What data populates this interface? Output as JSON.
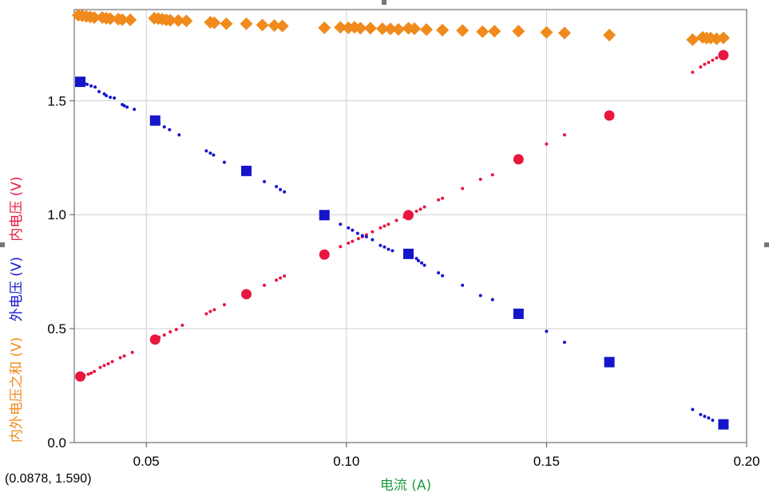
{
  "chart_data": {
    "type": "scatter",
    "title": "",
    "xlabel": "电流 (A)",
    "x_ticks": [
      "0.05",
      "0.10",
      "0.15",
      "0.20"
    ],
    "y_ticks": [
      "0.0",
      "0.5",
      "1.0",
      "1.5"
    ],
    "xlim": [
      0.032,
      0.2
    ],
    "ylim": [
      0,
      1.9
    ],
    "grid": true,
    "y_axis_labels": [
      {
        "text": "内电压 (V)",
        "color": "#e8173f"
      },
      {
        "text": "外电压 (V)",
        "color": "#1515cc"
      },
      {
        "text": "内外电压之和 (V)",
        "color": "#f08a1c"
      }
    ],
    "series": [
      {
        "name": "内电压",
        "color": "#e8173f",
        "marker": "circle",
        "highlight_points": [
          [
            0.0335,
            0.29
          ],
          [
            0.0522,
            0.452
          ],
          [
            0.075,
            0.651
          ],
          [
            0.0945,
            0.825
          ],
          [
            0.1155,
            0.998
          ],
          [
            0.143,
            1.243
          ],
          [
            0.1657,
            1.435
          ],
          [
            0.1942,
            1.7
          ]
        ],
        "sample_points": [
          [
            0.0345,
            0.295
          ],
          [
            0.0355,
            0.3
          ],
          [
            0.0362,
            0.305
          ],
          [
            0.037,
            0.312
          ],
          [
            0.0385,
            0.33
          ],
          [
            0.0395,
            0.338
          ],
          [
            0.0405,
            0.346
          ],
          [
            0.0415,
            0.355
          ],
          [
            0.0435,
            0.372
          ],
          [
            0.0445,
            0.38
          ],
          [
            0.0465,
            0.396
          ],
          [
            0.0532,
            0.462
          ],
          [
            0.0545,
            0.472
          ],
          [
            0.056,
            0.486
          ],
          [
            0.0575,
            0.496
          ],
          [
            0.059,
            0.515
          ],
          [
            0.065,
            0.565
          ],
          [
            0.066,
            0.575
          ],
          [
            0.067,
            0.583
          ],
          [
            0.0695,
            0.605
          ],
          [
            0.0795,
            0.69
          ],
          [
            0.0825,
            0.713
          ],
          [
            0.0835,
            0.722
          ],
          [
            0.0845,
            0.731
          ],
          [
            0.0985,
            0.86
          ],
          [
            0.1005,
            0.875
          ],
          [
            0.1015,
            0.883
          ],
          [
            0.103,
            0.895
          ],
          [
            0.104,
            0.903
          ],
          [
            0.105,
            0.912
          ],
          [
            0.1065,
            0.925
          ],
          [
            0.1085,
            0.942
          ],
          [
            0.1095,
            0.95
          ],
          [
            0.1105,
            0.958
          ],
          [
            0.1125,
            0.975
          ],
          [
            0.1145,
            0.99
          ],
          [
            0.1175,
            1.015
          ],
          [
            0.1185,
            1.024
          ],
          [
            0.1195,
            1.034
          ],
          [
            0.123,
            1.065
          ],
          [
            0.124,
            1.072
          ],
          [
            0.129,
            1.115
          ],
          [
            0.1335,
            1.155
          ],
          [
            0.1365,
            1.175
          ],
          [
            0.15,
            1.31
          ],
          [
            0.1545,
            1.35
          ],
          [
            0.1865,
            1.625
          ],
          [
            0.1885,
            1.648
          ],
          [
            0.1895,
            1.66
          ],
          [
            0.1905,
            1.668
          ],
          [
            0.1915,
            1.678
          ],
          [
            0.1925,
            1.688
          ]
        ]
      },
      {
        "name": "外电压",
        "color": "#1515cc",
        "marker": "square",
        "highlight_points": [
          [
            0.0335,
            1.583
          ],
          [
            0.0522,
            1.413
          ],
          [
            0.075,
            1.192
          ],
          [
            0.0945,
            0.998
          ],
          [
            0.1155,
            0.828
          ],
          [
            0.143,
            0.565
          ],
          [
            0.1657,
            0.353
          ],
          [
            0.1942,
            0.08
          ]
        ],
        "sample_points": [
          [
            0.0345,
            1.578
          ],
          [
            0.0352,
            1.572
          ],
          [
            0.0362,
            1.565
          ],
          [
            0.0372,
            1.56
          ],
          [
            0.0382,
            1.54
          ],
          [
            0.0395,
            1.53
          ],
          [
            0.04,
            1.522
          ],
          [
            0.041,
            1.515
          ],
          [
            0.042,
            1.512
          ],
          [
            0.044,
            1.483
          ],
          [
            0.0445,
            1.478
          ],
          [
            0.0452,
            1.472
          ],
          [
            0.047,
            1.462
          ],
          [
            0.0532,
            1.402
          ],
          [
            0.0545,
            1.385
          ],
          [
            0.0558,
            1.373
          ],
          [
            0.0582,
            1.35
          ],
          [
            0.065,
            1.28
          ],
          [
            0.066,
            1.27
          ],
          [
            0.0668,
            1.262
          ],
          [
            0.0695,
            1.23
          ],
          [
            0.0795,
            1.145
          ],
          [
            0.0825,
            1.123
          ],
          [
            0.0835,
            1.11
          ],
          [
            0.0845,
            1.1
          ],
          [
            0.0985,
            0.958
          ],
          [
            0.1005,
            0.942
          ],
          [
            0.1015,
            0.932
          ],
          [
            0.1028,
            0.918
          ],
          [
            0.104,
            0.908
          ],
          [
            0.105,
            0.903
          ],
          [
            0.1065,
            0.89
          ],
          [
            0.1085,
            0.865
          ],
          [
            0.1095,
            0.858
          ],
          [
            0.1105,
            0.848
          ],
          [
            0.1115,
            0.842
          ],
          [
            0.1175,
            0.808
          ],
          [
            0.118,
            0.798
          ],
          [
            0.1188,
            0.788
          ],
          [
            0.1195,
            0.778
          ],
          [
            0.123,
            0.745
          ],
          [
            0.124,
            0.732
          ],
          [
            0.129,
            0.69
          ],
          [
            0.1335,
            0.645
          ],
          [
            0.1365,
            0.627
          ],
          [
            0.15,
            0.488
          ],
          [
            0.1545,
            0.44
          ],
          [
            0.1865,
            0.145
          ],
          [
            0.1885,
            0.123
          ],
          [
            0.1895,
            0.115
          ],
          [
            0.1905,
            0.108
          ],
          [
            0.1915,
            0.098
          ]
        ]
      },
      {
        "name": "内外电压之和",
        "color": "#f08a1c",
        "marker": "diamond",
        "points": [
          [
            0.033,
            1.875
          ],
          [
            0.034,
            1.873
          ],
          [
            0.035,
            1.87
          ],
          [
            0.036,
            1.868
          ],
          [
            0.037,
            1.865
          ],
          [
            0.039,
            1.865
          ],
          [
            0.04,
            1.862
          ],
          [
            0.041,
            1.86
          ],
          [
            0.043,
            1.858
          ],
          [
            0.044,
            1.856
          ],
          [
            0.046,
            1.855
          ],
          [
            0.052,
            1.862
          ],
          [
            0.053,
            1.86
          ],
          [
            0.054,
            1.858
          ],
          [
            0.055,
            1.855
          ],
          [
            0.056,
            1.853
          ],
          [
            0.058,
            1.852
          ],
          [
            0.06,
            1.85
          ],
          [
            0.066,
            1.844
          ],
          [
            0.067,
            1.842
          ],
          [
            0.07,
            1.838
          ],
          [
            0.075,
            1.838
          ],
          [
            0.079,
            1.832
          ],
          [
            0.082,
            1.83
          ],
          [
            0.084,
            1.828
          ],
          [
            0.0945,
            1.82
          ],
          [
            0.0985,
            1.822
          ],
          [
            0.1005,
            1.82
          ],
          [
            0.102,
            1.822
          ],
          [
            0.1035,
            1.818
          ],
          [
            0.106,
            1.818
          ],
          [
            0.109,
            1.816
          ],
          [
            0.111,
            1.815
          ],
          [
            0.113,
            1.813
          ],
          [
            0.1155,
            1.818
          ],
          [
            0.117,
            1.816
          ],
          [
            0.12,
            1.812
          ],
          [
            0.124,
            1.81
          ],
          [
            0.129,
            1.808
          ],
          [
            0.134,
            1.803
          ],
          [
            0.137,
            1.805
          ],
          [
            0.143,
            1.805
          ],
          [
            0.15,
            1.8
          ],
          [
            0.1545,
            1.797
          ],
          [
            0.1657,
            1.788
          ],
          [
            0.1865,
            1.768
          ],
          [
            0.189,
            1.778
          ],
          [
            0.19,
            1.775
          ],
          [
            0.191,
            1.775
          ],
          [
            0.1925,
            1.772
          ],
          [
            0.1942,
            1.776
          ]
        ]
      }
    ]
  },
  "cursor_readout": "(0.0878, 1.590)"
}
